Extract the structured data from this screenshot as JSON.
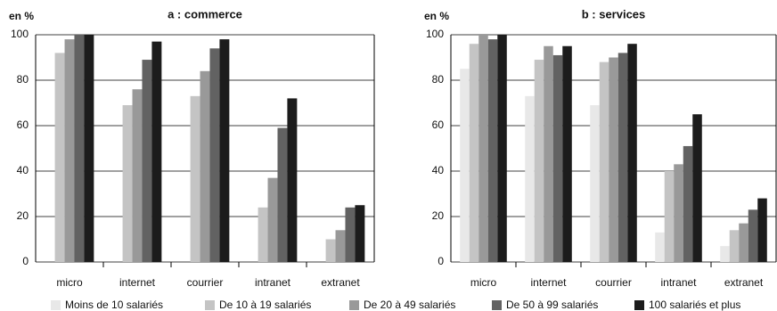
{
  "chart_data": [
    {
      "type": "bar",
      "title": "a : commerce",
      "y_label": "en %",
      "categories": [
        "micro",
        "internet",
        "courrier",
        "intranet",
        "extranet"
      ],
      "series": [
        {
          "name": "Moins de 10 salariés",
          "color": "#e8e8e8",
          "values": [
            null,
            null,
            null,
            null,
            null
          ]
        },
        {
          "name": "De 10 à 19 salariés",
          "color": "#c4c4c4",
          "values": [
            92,
            69,
            73,
            24,
            10
          ]
        },
        {
          "name": "De 20 à 49 salariés",
          "color": "#999999",
          "values": [
            98,
            76,
            84,
            37,
            14
          ]
        },
        {
          "name": "De 50 à 99 salariés",
          "color": "#626262",
          "values": [
            100,
            89,
            94,
            59,
            24
          ]
        },
        {
          "name": "100 salariés et plus",
          "color": "#1c1c1c",
          "values": [
            100,
            97,
            98,
            72,
            25
          ]
        }
      ],
      "ylim": [
        0,
        100
      ],
      "yticks": [
        0,
        20,
        40,
        60,
        80,
        100
      ],
      "grid": true,
      "legend": "bottom"
    },
    {
      "type": "bar",
      "title": "b : services",
      "y_label": "en %",
      "categories": [
        "micro",
        "internet",
        "courrier",
        "intranet",
        "extranet"
      ],
      "series": [
        {
          "name": "Moins de 10 salariés",
          "color": "#e8e8e8",
          "values": [
            85,
            73,
            69,
            13,
            7
          ]
        },
        {
          "name": "De 10 à 19 salariés",
          "color": "#c4c4c4",
          "values": [
            96,
            89,
            88,
            40,
            14
          ]
        },
        {
          "name": "De 20 à 49 salariés",
          "color": "#999999",
          "values": [
            100,
            95,
            90,
            43,
            17
          ]
        },
        {
          "name": "De 50 à 99 salariés",
          "color": "#626262",
          "values": [
            98,
            91,
            92,
            51,
            23
          ]
        },
        {
          "name": "100 salariés et plus",
          "color": "#1c1c1c",
          "values": [
            100,
            95,
            96,
            65,
            28
          ]
        }
      ],
      "ylim": [
        0,
        100
      ],
      "yticks": [
        0,
        20,
        40,
        60,
        80,
        100
      ],
      "grid": true
    }
  ]
}
